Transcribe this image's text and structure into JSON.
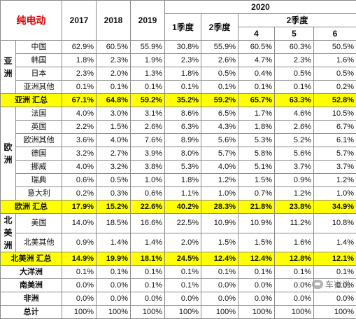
{
  "title": "纯电动",
  "headers": {
    "y2017": "2017",
    "y2018": "2018",
    "y2019": "2019",
    "y2020": "2020",
    "q1": "1季度",
    "q2": "2季度",
    "q2_group": "2季度",
    "m4": "4",
    "m5": "5",
    "m6": "6"
  },
  "groups": {
    "asia": "亚洲",
    "europe": "欧洲",
    "na": "北美洲"
  },
  "rows": {
    "china": {
      "label": "中国",
      "values": [
        "62.9%",
        "60.5%",
        "55.9%",
        "30.8%",
        "55.9%",
        "60.5%",
        "60.3%",
        "50.5%"
      ]
    },
    "korea": {
      "label": "韩国",
      "values": [
        "1.8%",
        "2.3%",
        "1.9%",
        "2.3%",
        "2.6%",
        "4.7%",
        "2.3%",
        "1.6%"
      ]
    },
    "japan": {
      "label": "日本",
      "values": [
        "2.3%",
        "2.0%",
        "1.3%",
        "1.8%",
        "0.5%",
        "0.4%",
        "0.5%",
        "0.5%"
      ]
    },
    "asia_other": {
      "label": "亚洲其他",
      "values": [
        "0.1%",
        "0.1%",
        "0.1%",
        "0.1%",
        "0.1%",
        "0.1%",
        "0.1%",
        "0.2%"
      ]
    },
    "asia_total": {
      "label": "亚洲 汇总",
      "values": [
        "67.1%",
        "64.8%",
        "59.2%",
        "35.2%",
        "59.2%",
        "65.7%",
        "63.3%",
        "52.8%"
      ]
    },
    "france": {
      "label": "法国",
      "values": [
        "4.0%",
        "3.0%",
        "3.1%",
        "8.6%",
        "6.5%",
        "1.7%",
        "4.6%",
        "10.5%"
      ]
    },
    "uk": {
      "label": "英国",
      "values": [
        "2.2%",
        "1.5%",
        "2.6%",
        "6.3%",
        "4.3%",
        "1.8%",
        "2.6%",
        "6.7%"
      ]
    },
    "eu_other": {
      "label": "欧洲其他",
      "values": [
        "3.6%",
        "4.0%",
        "7.6%",
        "8.9%",
        "5.6%",
        "5.3%",
        "5.2%",
        "6.1%"
      ]
    },
    "germany": {
      "label": "德国",
      "values": [
        "3.2%",
        "2.7%",
        "3.9%",
        "8.0%",
        "5.7%",
        "5.8%",
        "5.6%",
        "5.7%"
      ]
    },
    "norway": {
      "label": "挪威",
      "values": [
        "4.0%",
        "3.2%",
        "3.8%",
        "5.3%",
        "4.0%",
        "5.1%",
        "3.7%",
        "3.7%"
      ]
    },
    "sweden": {
      "label": "瑞典",
      "values": [
        "0.6%",
        "0.5%",
        "1.0%",
        "1.8%",
        "1.2%",
        "1.5%",
        "0.9%",
        "1.2%"
      ]
    },
    "italy": {
      "label": "意大利",
      "values": [
        "0.2%",
        "0.3%",
        "0.6%",
        "1.1%",
        "1.0%",
        "0.7%",
        "1.2%",
        "1.0%"
      ]
    },
    "eu_total": {
      "label": "欧洲 汇总",
      "values": [
        "17.9%",
        "15.2%",
        "22.6%",
        "40.2%",
        "28.3%",
        "21.8%",
        "23.8%",
        "34.9%"
      ]
    },
    "usa": {
      "label": "美国",
      "values": [
        "14.0%",
        "18.5%",
        "16.6%",
        "22.5%",
        "10.9%",
        "10.9%",
        "11.2%",
        "10.8%"
      ]
    },
    "na_other": {
      "label": "北美其他",
      "values": [
        "0.9%",
        "1.4%",
        "1.4%",
        "2.0%",
        "1.5%",
        "1.5%",
        "1.6%",
        "1.4%"
      ]
    },
    "na_total": {
      "label": "北美洲 汇总",
      "values": [
        "14.9%",
        "19.9%",
        "18.1%",
        "24.5%",
        "12.4%",
        "12.4%",
        "12.8%",
        "12.1%"
      ]
    },
    "oceania": {
      "label": "大洋洲",
      "values": [
        "0.1%",
        "0.1%",
        "0.1%",
        "0.1%",
        "0.1%",
        "0.1%",
        "0.1%",
        "0.1%"
      ]
    },
    "s_america": {
      "label": "南美洲",
      "values": [
        "0.0%",
        "0.0%",
        "0.1%",
        "0.1%",
        "0.0%",
        "0.0%",
        "0.0%",
        "0.0%"
      ]
    },
    "africa": {
      "label": "非洲",
      "values": [
        "0.0%",
        "0.0%",
        "0.0%",
        "0.0%",
        "0.0%",
        "0.0%",
        "0.0%",
        "0.0%"
      ]
    },
    "total": {
      "label": "总计",
      "values": [
        "100%",
        "100%",
        "100%",
        "100%",
        "100%",
        "100%",
        "100%",
        "100%"
      ]
    }
  },
  "watermark": "车崔说"
}
